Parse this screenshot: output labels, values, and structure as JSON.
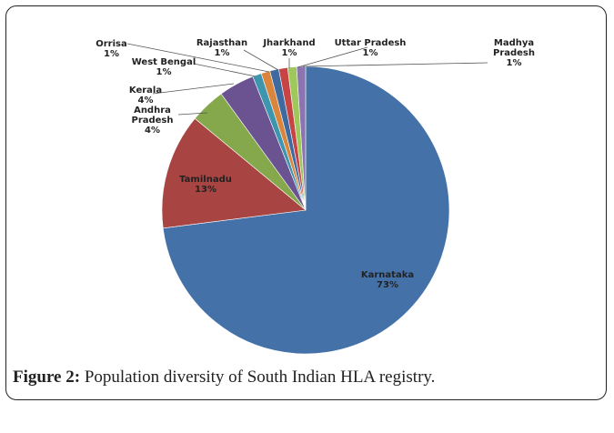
{
  "chart_data": {
    "type": "pie",
    "categories": [
      "Karnataka",
      "Tamilnadu",
      "Andhra Pradesh",
      "Kerala",
      "West Bengal",
      "Orrisa",
      "Rajasthan",
      "Jharkhand",
      "Uttar Pradesh",
      "Madhya Pradesh"
    ],
    "values": [
      73,
      13,
      4,
      4,
      1,
      1,
      1,
      1,
      1,
      1
    ],
    "value_labels": [
      "73%",
      "13%",
      "4%",
      "4%",
      "1%",
      "1%",
      "1%",
      "1%",
      "1%",
      "1%"
    ],
    "colors": [
      "#4472a8",
      "#a84442",
      "#86a84c",
      "#6a5390",
      "#3d95ae",
      "#d9853c",
      "#3f6aa0",
      "#c64544",
      "#9ec85c",
      "#8c74b0"
    ]
  },
  "caption": {
    "label": "Figure 2:",
    "text": "Population diversity of South Indian HLA registry."
  }
}
